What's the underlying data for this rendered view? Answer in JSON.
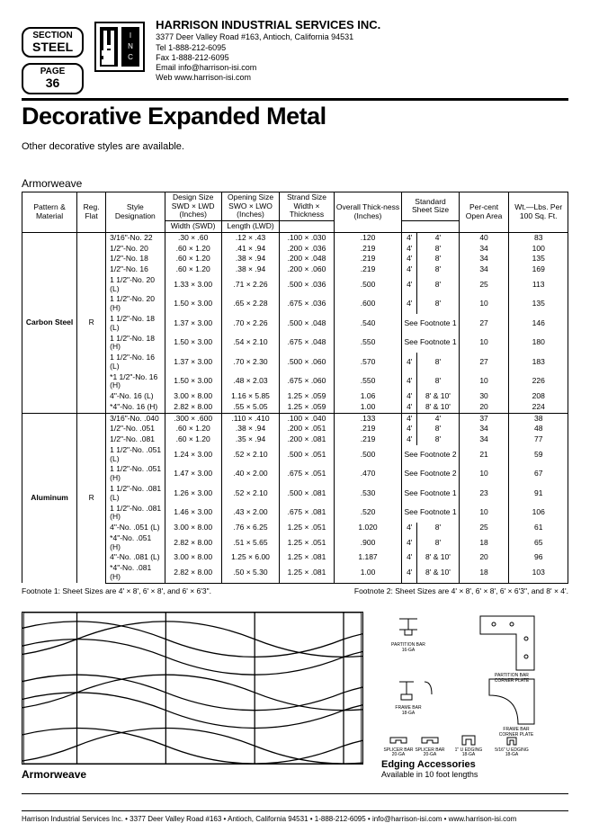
{
  "section_label": "SECTION",
  "section_value": "STEEL",
  "page_label": "PAGE",
  "page_number": "36",
  "company": {
    "name": "HARRISON INDUSTRIAL SERVICES INC.",
    "addr": "3377 Deer Valley Road #163, Antioch, California 94531",
    "tel": "Tel  1-888-212-6095",
    "fax": "Fax  1-888-212-6095",
    "email": "Email  info@harrison-isi.com",
    "web": "Web  www.harrison-isi.com"
  },
  "title": "Decorative Expanded Metal",
  "intro": "Other decorative styles are available.",
  "table_title": "Armorweave",
  "headers": {
    "c1": "Pattern & Material",
    "c2": "Reg. Flat",
    "c3": "Style Designation",
    "c4a": "Design Size",
    "c4b": "SWD × LWD (Inches)",
    "c5a": "Opening Size",
    "c5b": "SWO × LWO (Inches)",
    "c6a": "Strand Size",
    "c6b": "Width × Thickness",
    "c7a": "Overall Thick-ness (Inches)",
    "c8a": "Standard Sheet Size",
    "c8b": "Width (SWD)",
    "c8c": "Length (LWD)",
    "c9": "Per-cent Open Area",
    "c10": "Wt.—Lbs. Per 100 Sq. Ft."
  },
  "group1_material": "Carbon Steel",
  "group1_flat": "R",
  "group1": [
    {
      "s": "3/16\"-No. 22",
      "ds": ".30 × .60",
      "os": ".12 × .43",
      "st": ".100 × .030",
      "ot": ".120",
      "w": "4'",
      "l": "4'",
      "pa": "40",
      "wt": "83"
    },
    {
      "s": "1/2\"-No. 20",
      "ds": ".60 × 1.20",
      "os": ".41 × .94",
      "st": ".200 × .036",
      "ot": ".219",
      "w": "4'",
      "l": "8'",
      "pa": "34",
      "wt": "100"
    },
    {
      "s": "1/2\"-No. 18",
      "ds": ".60 × 1.20",
      "os": ".38 × .94",
      "st": ".200 × .048",
      "ot": ".219",
      "w": "4'",
      "l": "8'",
      "pa": "34",
      "wt": "135"
    },
    {
      "s": "1/2\"-No. 16",
      "ds": ".60 × 1.20",
      "os": ".38 × .94",
      "st": ".200 × .060",
      "ot": ".219",
      "w": "4'",
      "l": "8'",
      "pa": "34",
      "wt": "169"
    },
    {
      "s": "1 1/2\"-No. 20 (L)",
      "ds": "1.33 × 3.00",
      "os": ".71 × 2.26",
      "st": ".500 × .036",
      "ot": ".500",
      "w": "4'",
      "l": "8'",
      "pa": "25",
      "wt": "113"
    },
    {
      "s": "1 1/2\"-No. 20 (H)",
      "ds": "1.50 × 3.00",
      "os": ".65 × 2.28",
      "st": ".675 × .036",
      "ot": ".600",
      "w": "4'",
      "l": "8'",
      "pa": "10",
      "wt": "135"
    },
    {
      "s": "1 1/2\"-No. 18 (L)",
      "ds": "1.37 × 3.00",
      "os": ".70 × 2.26",
      "st": ".500 × .048",
      "ot": ".540",
      "w": "",
      "l": "See Footnote 1",
      "pa": "27",
      "wt": "146"
    },
    {
      "s": "1 1/2\"-No. 18 (H)",
      "ds": "1.50 × 3.00",
      "os": ".54 × 2.10",
      "st": ".675 × .048",
      "ot": ".550",
      "w": "",
      "l": "See Footnote 1",
      "pa": "10",
      "wt": "180"
    },
    {
      "s": "1 1/2\"-No. 16 (L)",
      "ds": "1.37 × 3.00",
      "os": ".70 × 2.30",
      "st": ".500 × .060",
      "ot": ".570",
      "w": "4'",
      "l": "8'",
      "pa": "27",
      "wt": "183"
    },
    {
      "s": "*1 1/2\"-No. 16 (H)",
      "ds": "1.50 × 3.00",
      "os": ".48 × 2.03",
      "st": ".675 × .060",
      "ot": ".550",
      "w": "4'",
      "l": "8'",
      "pa": "10",
      "wt": "226"
    },
    {
      "s": "4\"-No. 16 (L)",
      "ds": "3.00 × 8.00",
      "os": "1.16 × 5.85",
      "st": "1.25 × .059",
      "ot": "1.06",
      "w": "4'",
      "l": "8' & 10'",
      "pa": "30",
      "wt": "208"
    },
    {
      "s": "*4\"-No. 16 (H)",
      "ds": "2.82 × 8.00",
      "os": ".55 × 5.05",
      "st": "1.25 × .059",
      "ot": "1.00",
      "w": "4'",
      "l": "8' & 10'",
      "pa": "20",
      "wt": "224"
    }
  ],
  "group2_material": "Aluminum",
  "group2_flat": "R",
  "group2": [
    {
      "s": "3/16\"-No. .040",
      "ds": ".300 × .600",
      "os": ".110 × .410",
      "st": ".100 × .040",
      "ot": ".133",
      "w": "4'",
      "l": "4'",
      "pa": "37",
      "wt": "38"
    },
    {
      "s": "1/2\"-No. .051",
      "ds": ".60 × 1.20",
      "os": ".38 × .94",
      "st": ".200 × .051",
      "ot": ".219",
      "w": "4'",
      "l": "8'",
      "pa": "34",
      "wt": "48"
    },
    {
      "s": "1/2\"-No. .081",
      "ds": ".60 × 1.20",
      "os": ".35 × .94",
      "st": ".200 × .081",
      "ot": ".219",
      "w": "4'",
      "l": "8'",
      "pa": "34",
      "wt": "77"
    },
    {
      "s": "1 1/2\"-No. .051 (L)",
      "ds": "1.24 × 3.00",
      "os": ".52 × 2.10",
      "st": ".500 × .051",
      "ot": ".500",
      "w": "",
      "l": "See Footnote 2",
      "pa": "21",
      "wt": "59"
    },
    {
      "s": "1 1/2\"-No. .051 (H)",
      "ds": "1.47 × 3.00",
      "os": ".40 × 2.00",
      "st": ".675 × .051",
      "ot": ".470",
      "w": "",
      "l": "See Footnote 2",
      "pa": "10",
      "wt": "67"
    },
    {
      "s": "1 1/2\"-No. .081 (L)",
      "ds": "1.26 × 3.00",
      "os": ".52 × 2.10",
      "st": ".500 × .081",
      "ot": ".530",
      "w": "",
      "l": "See Footnote 1",
      "pa": "23",
      "wt": "91"
    },
    {
      "s": "1 1/2\"-No. .081 (H)",
      "ds": "1.46 × 3.00",
      "os": ".43 × 2.00",
      "st": ".675 × .081",
      "ot": ".520",
      "w": "",
      "l": "See Footnote 1",
      "pa": "10",
      "wt": "106"
    },
    {
      "s": "4\"-No. .051 (L)",
      "ds": "3.00 × 8.00",
      "os": ".76 × 6.25",
      "st": "1.25 × .051",
      "ot": "1.020",
      "w": "4'",
      "l": "8'",
      "pa": "25",
      "wt": "61"
    },
    {
      "s": "*4\"-No. .051 (H)",
      "ds": "2.82 × 8.00",
      "os": ".51 × 5.65",
      "st": "1.25 × .051",
      "ot": ".900",
      "w": "4'",
      "l": "8'",
      "pa": "18",
      "wt": "65"
    },
    {
      "s": "4\"-No. .081 (L)",
      "ds": "3.00 × 8.00",
      "os": "1.25 × 6.00",
      "st": "1.25 × .081",
      "ot": "1.187",
      "w": "4'",
      "l": "8' & 10'",
      "pa": "20",
      "wt": "96"
    },
    {
      "s": "*4\"-No. .081 (H)",
      "ds": "2.82 × 8.00",
      "os": ".50 × 5.30",
      "st": "1.25 × .081",
      "ot": "1.00",
      "w": "4'",
      "l": "8' & 10'",
      "pa": "18",
      "wt": "103"
    }
  ],
  "footnote1": "Footnote 1:  Sheet Sizes are 4' × 8', 6' × 8', and 6' × 6'3\".",
  "footnote2": "Footnote 2:  Sheet Sizes are 4' × 8', 6' × 8', 6' × 6'3\", and 8' × 4'.",
  "armor_caption": "Armorweave",
  "edging_labels": {
    "partbar": "PARTITION BAR 16-GA",
    "partcorner": "PARTITION BAR CORNER PLATE",
    "framebar": "FRAME BAR 18-GA",
    "framecorner": "FRAME BAR CORNER PLATE",
    "splice": "SPLICER BAR 20-GA",
    "uedge1": "1\" U EDGING 18-GA",
    "uedge2": "5/16\" U EDGING 18-GA"
  },
  "edging_title": "Edging Accessories",
  "edging_sub": "Available in 10 foot lengths",
  "footer": "Harrison Industrial Services Inc. • 3377 Deer Valley Road #163 • Antioch, California 94531 • 1-888-212-6095 • info@harrison-isi.com • www.harrison-isi.com"
}
